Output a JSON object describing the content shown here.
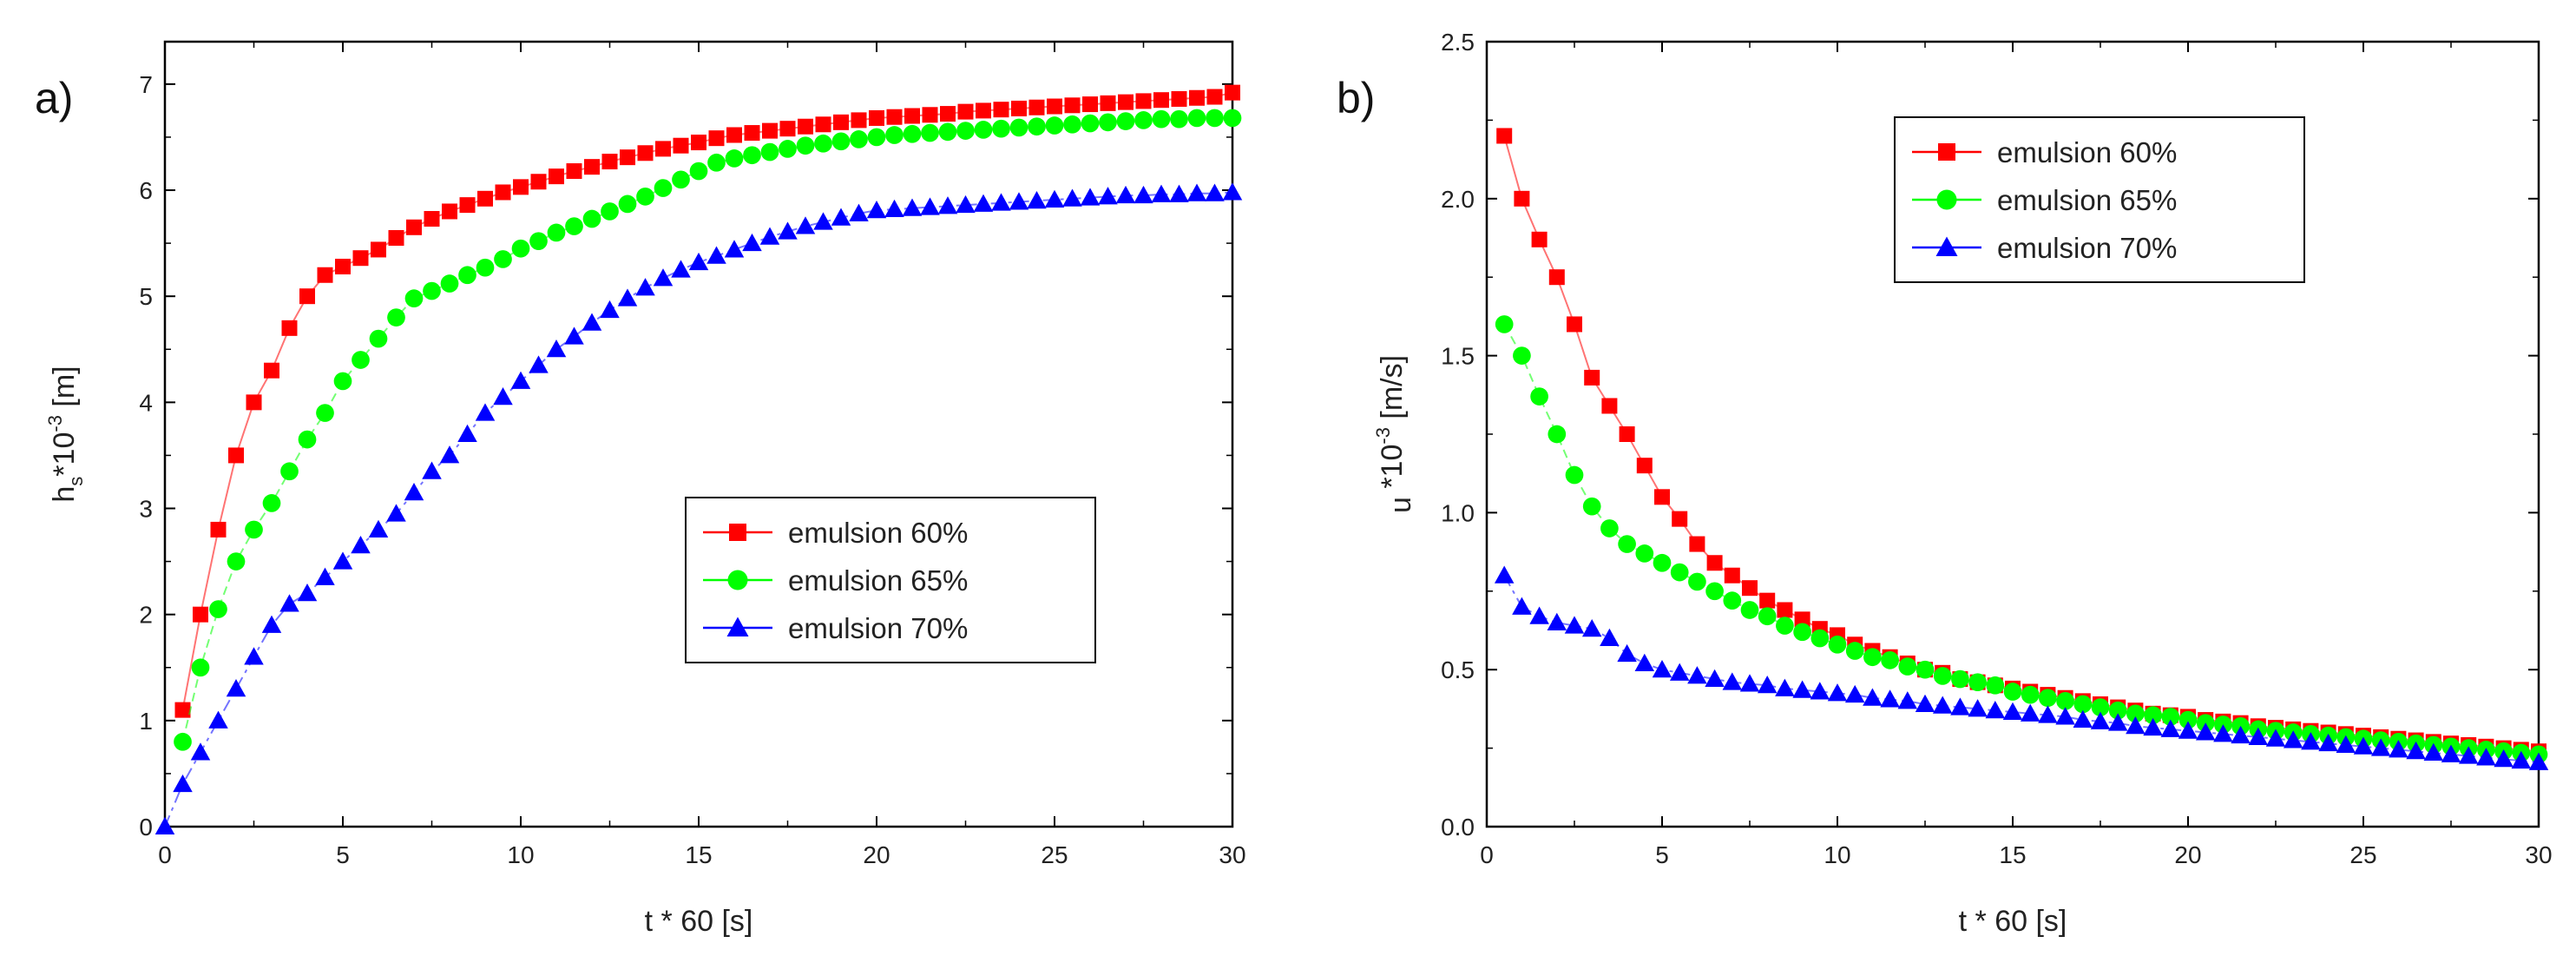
{
  "chart_data": [
    {
      "type": "line",
      "panel_label": "a)",
      "title": "",
      "xlabel": "t * 60 [s]",
      "ylabel_main": "h",
      "ylabel_sub": "s",
      "ylabel_rest": "*10",
      "ylabel_sup": "-3",
      "ylabel_unit": " [m]",
      "xlim": [
        0,
        30
      ],
      "ylim": [
        0,
        7.4
      ],
      "xticks": [
        0,
        5,
        10,
        15,
        20,
        25,
        30
      ],
      "yticks": [
        0,
        1,
        2,
        3,
        4,
        5,
        6,
        7
      ],
      "legend_position": "center-right",
      "series": [
        {
          "name": "emulsion 60%",
          "marker": "square",
          "color": "#ff0000",
          "x": [
            0.5,
            1,
            1.5,
            2,
            2.5,
            3,
            3.5,
            4,
            4.5,
            5,
            5.5,
            6,
            6.5,
            7,
            7.5,
            8,
            8.5,
            9,
            9.5,
            10,
            10.5,
            11,
            11.5,
            12,
            12.5,
            13,
            13.5,
            14,
            14.5,
            15,
            15.5,
            16,
            16.5,
            17,
            17.5,
            18,
            18.5,
            19,
            19.5,
            20,
            20.5,
            21,
            21.5,
            22,
            22.5,
            23,
            23.5,
            24,
            24.5,
            25,
            25.5,
            26,
            26.5,
            27,
            27.5,
            28,
            28.5,
            29,
            29.5,
            30
          ],
          "y": [
            1.1,
            2.0,
            2.8,
            3.5,
            4.0,
            4.3,
            4.7,
            5.0,
            5.2,
            5.28,
            5.36,
            5.44,
            5.55,
            5.65,
            5.73,
            5.8,
            5.86,
            5.92,
            5.98,
            6.03,
            6.08,
            6.13,
            6.18,
            6.22,
            6.27,
            6.31,
            6.35,
            6.39,
            6.42,
            6.45,
            6.49,
            6.52,
            6.54,
            6.56,
            6.58,
            6.6,
            6.62,
            6.64,
            6.66,
            6.68,
            6.69,
            6.7,
            6.71,
            6.72,
            6.74,
            6.75,
            6.76,
            6.77,
            6.78,
            6.79,
            6.8,
            6.81,
            6.82,
            6.83,
            6.84,
            6.85,
            6.86,
            6.87,
            6.88,
            6.92
          ]
        },
        {
          "name": "emulsion 65%",
          "marker": "circle",
          "color": "#00ff00",
          "x": [
            0.5,
            1,
            1.5,
            2,
            2.5,
            3,
            3.5,
            4,
            4.5,
            5,
            5.5,
            6,
            6.5,
            7,
            7.5,
            8,
            8.5,
            9,
            9.5,
            10,
            10.5,
            11,
            11.5,
            12,
            12.5,
            13,
            13.5,
            14,
            14.5,
            15,
            15.5,
            16,
            16.5,
            17,
            17.5,
            18,
            18.5,
            19,
            19.5,
            20,
            20.5,
            21,
            21.5,
            22,
            22.5,
            23,
            23.5,
            24,
            24.5,
            25,
            25.5,
            26,
            26.5,
            27,
            27.5,
            28,
            28.5,
            29,
            29.5,
            30
          ],
          "y": [
            0.8,
            1.5,
            2.05,
            2.5,
            2.8,
            3.05,
            3.35,
            3.65,
            3.9,
            4.2,
            4.4,
            4.6,
            4.8,
            4.98,
            5.05,
            5.12,
            5.2,
            5.27,
            5.35,
            5.45,
            5.52,
            5.6,
            5.66,
            5.73,
            5.8,
            5.87,
            5.94,
            6.02,
            6.1,
            6.18,
            6.26,
            6.3,
            6.33,
            6.36,
            6.39,
            6.42,
            6.44,
            6.46,
            6.48,
            6.5,
            6.52,
            6.53,
            6.54,
            6.55,
            6.56,
            6.57,
            6.58,
            6.59,
            6.6,
            6.61,
            6.62,
            6.63,
            6.64,
            6.65,
            6.66,
            6.67,
            6.67,
            6.68,
            6.68,
            6.68
          ]
        },
        {
          "name": "emulsion 70%",
          "marker": "triangle",
          "color": "#0000ff",
          "x": [
            0,
            0.5,
            1,
            1.5,
            2,
            2.5,
            3,
            3.5,
            4,
            4.5,
            5,
            5.5,
            6,
            6.5,
            7,
            7.5,
            8,
            8.5,
            9,
            9.5,
            10,
            10.5,
            11,
            11.5,
            12,
            12.5,
            13,
            13.5,
            14,
            14.5,
            15,
            15.5,
            16,
            16.5,
            17,
            17.5,
            18,
            18.5,
            19,
            19.5,
            20,
            20.5,
            21,
            21.5,
            22,
            22.5,
            23,
            23.5,
            24,
            24.5,
            25,
            25.5,
            26,
            26.5,
            27,
            27.5,
            28,
            28.5,
            29,
            29.5,
            30
          ],
          "y": [
            0,
            0.4,
            0.7,
            1.0,
            1.3,
            1.6,
            1.9,
            2.1,
            2.2,
            2.35,
            2.5,
            2.65,
            2.8,
            2.95,
            3.15,
            3.35,
            3.5,
            3.7,
            3.9,
            4.05,
            4.2,
            4.35,
            4.5,
            4.62,
            4.75,
            4.87,
            4.98,
            5.08,
            5.17,
            5.25,
            5.32,
            5.38,
            5.44,
            5.5,
            5.56,
            5.61,
            5.66,
            5.7,
            5.74,
            5.78,
            5.81,
            5.82,
            5.83,
            5.84,
            5.85,
            5.86,
            5.87,
            5.88,
            5.89,
            5.9,
            5.91,
            5.92,
            5.93,
            5.94,
            5.95,
            5.95,
            5.96,
            5.96,
            5.97,
            5.97,
            5.98
          ]
        }
      ]
    },
    {
      "type": "line",
      "panel_label": "b)",
      "title": "",
      "xlabel": "t * 60 [s]",
      "ylabel_main": "u",
      "ylabel_sub": "",
      "ylabel_rest": " *10",
      "ylabel_sup": "-3",
      "ylabel_unit": " [m/s]",
      "xlim": [
        0,
        30
      ],
      "ylim": [
        0,
        2.5
      ],
      "xticks": [
        0,
        5,
        10,
        15,
        20,
        25,
        30
      ],
      "yticks": [
        0.0,
        0.5,
        1.0,
        1.5,
        2.0,
        2.5
      ],
      "ytick_labels": [
        "0.0",
        "0.5",
        "1.0",
        "1.5",
        "2.0",
        "2.5"
      ],
      "legend_position": "top-center",
      "series": [
        {
          "name": "emulsion 60%",
          "marker": "square",
          "color": "#ff0000",
          "x": [
            0.5,
            1,
            1.5,
            2,
            2.5,
            3,
            3.5,
            4,
            4.5,
            5,
            5.5,
            6,
            6.5,
            7,
            7.5,
            8,
            8.5,
            9,
            9.5,
            10,
            10.5,
            11,
            11.5,
            12,
            12.5,
            13,
            13.5,
            14,
            14.5,
            15,
            15.5,
            16,
            16.5,
            17,
            17.5,
            18,
            18.5,
            19,
            19.5,
            20,
            20.5,
            21,
            21.5,
            22,
            22.5,
            23,
            23.5,
            24,
            24.5,
            25,
            25.5,
            26,
            26.5,
            27,
            27.5,
            28,
            28.5,
            29,
            29.5,
            30
          ],
          "y": [
            2.2,
            2.0,
            1.87,
            1.75,
            1.6,
            1.43,
            1.34,
            1.25,
            1.15,
            1.05,
            0.98,
            0.9,
            0.84,
            0.8,
            0.76,
            0.72,
            0.69,
            0.66,
            0.63,
            0.61,
            0.58,
            0.56,
            0.54,
            0.52,
            0.5,
            0.49,
            0.47,
            0.46,
            0.45,
            0.44,
            0.43,
            0.42,
            0.41,
            0.4,
            0.39,
            0.38,
            0.37,
            0.36,
            0.355,
            0.35,
            0.34,
            0.335,
            0.33,
            0.32,
            0.315,
            0.31,
            0.305,
            0.3,
            0.295,
            0.29,
            0.285,
            0.28,
            0.275,
            0.27,
            0.265,
            0.26,
            0.255,
            0.25,
            0.245,
            0.24
          ]
        },
        {
          "name": "emulsion 65%",
          "marker": "circle",
          "color": "#00ff00",
          "x": [
            0.5,
            1,
            1.5,
            2,
            2.5,
            3,
            3.5,
            4,
            4.5,
            5,
            5.5,
            6,
            6.5,
            7,
            7.5,
            8,
            8.5,
            9,
            9.5,
            10,
            10.5,
            11,
            11.5,
            12,
            12.5,
            13,
            13.5,
            14,
            14.5,
            15,
            15.5,
            16,
            16.5,
            17,
            17.5,
            18,
            18.5,
            19,
            19.5,
            20,
            20.5,
            21,
            21.5,
            22,
            22.5,
            23,
            23.5,
            24,
            24.5,
            25,
            25.5,
            26,
            26.5,
            27,
            27.5,
            28,
            28.5,
            29,
            29.5,
            30
          ],
          "y": [
            1.6,
            1.5,
            1.37,
            1.25,
            1.12,
            1.02,
            0.95,
            0.9,
            0.87,
            0.84,
            0.81,
            0.78,
            0.75,
            0.72,
            0.69,
            0.67,
            0.64,
            0.62,
            0.6,
            0.58,
            0.56,
            0.54,
            0.53,
            0.51,
            0.5,
            0.48,
            0.47,
            0.46,
            0.45,
            0.43,
            0.42,
            0.41,
            0.4,
            0.39,
            0.38,
            0.37,
            0.36,
            0.355,
            0.35,
            0.34,
            0.33,
            0.325,
            0.32,
            0.31,
            0.305,
            0.3,
            0.295,
            0.29,
            0.285,
            0.28,
            0.275,
            0.27,
            0.265,
            0.26,
            0.255,
            0.25,
            0.245,
            0.24,
            0.235,
            0.23
          ]
        },
        {
          "name": "emulsion 70%",
          "marker": "triangle",
          "color": "#0000ff",
          "x": [
            0.5,
            1,
            1.5,
            2,
            2.5,
            3,
            3.5,
            4,
            4.5,
            5,
            5.5,
            6,
            6.5,
            7,
            7.5,
            8,
            8.5,
            9,
            9.5,
            10,
            10.5,
            11,
            11.5,
            12,
            12.5,
            13,
            13.5,
            14,
            14.5,
            15,
            15.5,
            16,
            16.5,
            17,
            17.5,
            18,
            18.5,
            19,
            19.5,
            20,
            20.5,
            21,
            21.5,
            22,
            22.5,
            23,
            23.5,
            24,
            24.5,
            25,
            25.5,
            26,
            26.5,
            27,
            27.5,
            28,
            28.5,
            29,
            29.5,
            30
          ],
          "y": [
            0.8,
            0.7,
            0.67,
            0.65,
            0.64,
            0.63,
            0.6,
            0.55,
            0.52,
            0.5,
            0.49,
            0.48,
            0.47,
            0.46,
            0.455,
            0.45,
            0.44,
            0.435,
            0.43,
            0.425,
            0.42,
            0.41,
            0.405,
            0.4,
            0.39,
            0.385,
            0.38,
            0.375,
            0.37,
            0.365,
            0.36,
            0.355,
            0.35,
            0.34,
            0.335,
            0.33,
            0.32,
            0.315,
            0.31,
            0.305,
            0.3,
            0.295,
            0.29,
            0.285,
            0.28,
            0.275,
            0.27,
            0.265,
            0.26,
            0.255,
            0.25,
            0.245,
            0.24,
            0.235,
            0.23,
            0.225,
            0.22,
            0.215,
            0.21,
            0.205
          ]
        }
      ]
    }
  ]
}
